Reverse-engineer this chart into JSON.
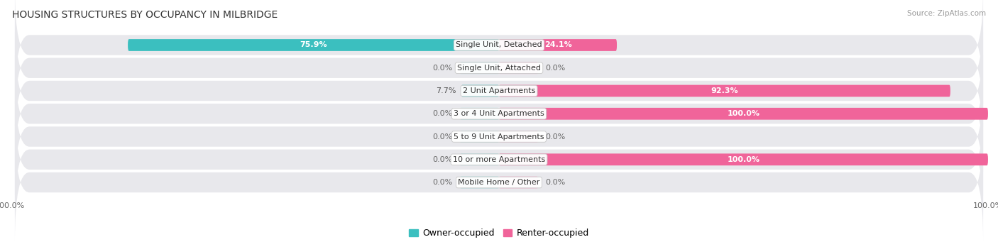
{
  "title": "HOUSING STRUCTURES BY OCCUPANCY IN MILBRIDGE",
  "source": "Source: ZipAtlas.com",
  "categories": [
    "Single Unit, Detached",
    "Single Unit, Attached",
    "2 Unit Apartments",
    "3 or 4 Unit Apartments",
    "5 to 9 Unit Apartments",
    "10 or more Apartments",
    "Mobile Home / Other"
  ],
  "owner_pct": [
    75.9,
    0.0,
    7.7,
    0.0,
    0.0,
    0.0,
    0.0
  ],
  "renter_pct": [
    24.1,
    0.0,
    92.3,
    100.0,
    0.0,
    100.0,
    0.0
  ],
  "owner_label": [
    "75.9%",
    "0.0%",
    "7.7%",
    "0.0%",
    "0.0%",
    "0.0%",
    "0.0%"
  ],
  "renter_label": [
    "24.1%",
    "0.0%",
    "92.3%",
    "100.0%",
    "0.0%",
    "100.0%",
    "0.0%"
  ],
  "owner_color": "#3BBFBF",
  "renter_color": "#F0649A",
  "owner_color_light": "#A0D8D8",
  "renter_color_light": "#F5AACB",
  "row_bg_color": "#E8E8EC",
  "bar_height": 0.52,
  "stub_size": 8.0,
  "title_fontsize": 10,
  "label_fontsize": 8,
  "axis_label_fontsize": 8,
  "legend_fontsize": 9,
  "xlim_left": -100,
  "xlim_right": 100
}
